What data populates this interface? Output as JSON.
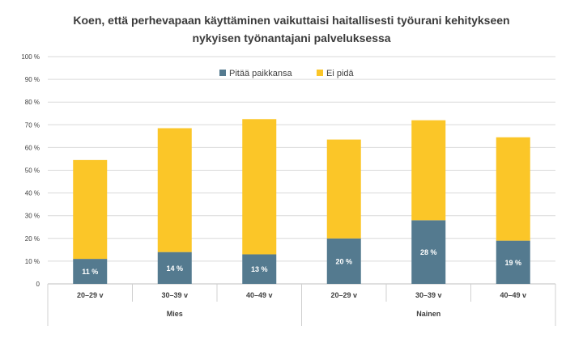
{
  "chart_data": {
    "type": "bar",
    "stacked": true,
    "title_lines": [
      "Koen, että perhevapaan käyttäminen vaikuttaisi haitallisesti työurani kehitykseen",
      "nykyisen työnantajani palveluksessa"
    ],
    "categories": [
      "20–29 v",
      "30–39 v",
      "40–49 v",
      "20–29 v",
      "30–39 v",
      "40–49 v"
    ],
    "groups": [
      {
        "label": "Mies",
        "count": 3
      },
      {
        "label": "Nainen",
        "count": 3
      }
    ],
    "series": [
      {
        "name": "Pitää paikkansa",
        "color": "#547a8f",
        "values": [
          11,
          14,
          13,
          20,
          28,
          19
        ],
        "labels": [
          "11 %",
          "14 %",
          "13 %",
          "20 %",
          "28 %",
          "19 %"
        ]
      },
      {
        "name": "Ei pidä",
        "color": "#fbc628",
        "values": [
          43.5,
          54.5,
          59.5,
          43.5,
          44,
          45.5
        ]
      }
    ],
    "ylim": [
      0,
      100
    ],
    "yticks": [
      "0",
      "10 %",
      "20 %",
      "30 %",
      "40 %",
      "50 %",
      "60 %",
      "70 %",
      "80 %",
      "90 %",
      "100 %"
    ],
    "grid": true,
    "legend_position": "top-center",
    "gridline_color": "#d9d9d9"
  }
}
